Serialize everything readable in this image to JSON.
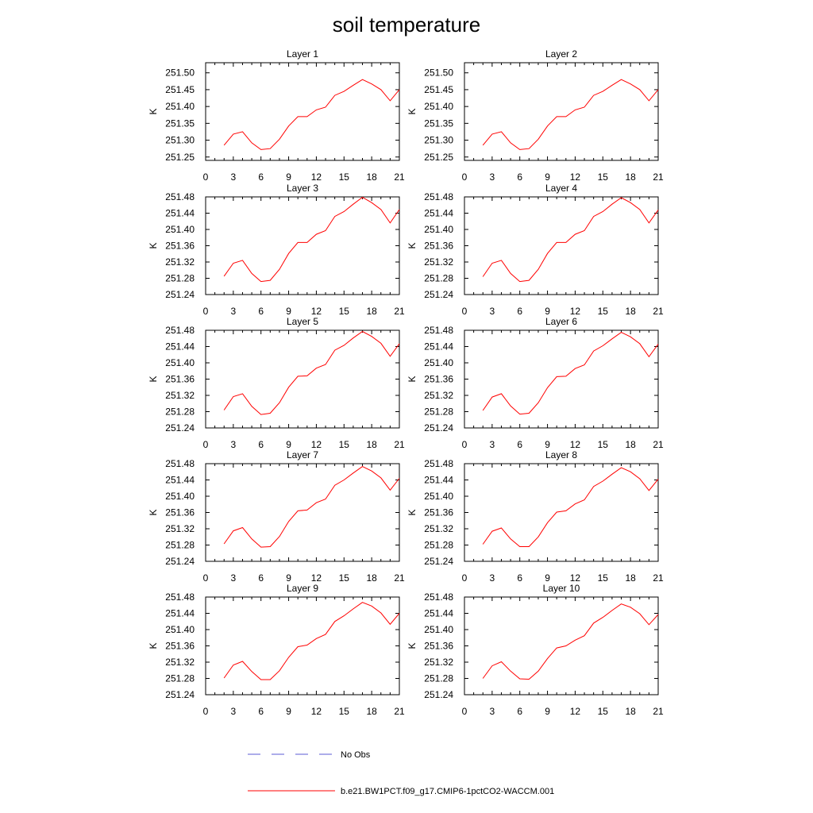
{
  "figure_title": "soil temperature",
  "legend": [
    {
      "label": "No Obs",
      "color": "#5b5bd6",
      "style": "dashed"
    },
    {
      "label": "b.e21.BW1PCT.f09_g17.CMIP6-1pctCO2-WACCM.001",
      "color": "#ff0000",
      "style": "solid"
    }
  ],
  "chart_data": [
    {
      "type": "line",
      "title": "Layer 1",
      "ylabel": "K",
      "xlim": [
        0,
        21
      ],
      "xticks": [
        0,
        3,
        6,
        9,
        12,
        15,
        18,
        21
      ],
      "ylim": [
        251.24,
        251.53
      ],
      "yticks": [
        251.25,
        251.3,
        251.35,
        251.4,
        251.45,
        251.5
      ],
      "ytick_labels": [
        "251.25",
        "251.30",
        "251.35",
        "251.40",
        "251.45",
        "251.50"
      ],
      "series": [
        {
          "color": "#ff0000",
          "x": [
            2,
            3,
            4,
            5,
            6,
            7,
            8,
            9,
            10,
            11,
            12,
            13,
            14,
            15,
            16,
            17,
            18,
            19,
            20,
            21
          ],
          "y": [
            251.285,
            251.318,
            251.325,
            251.292,
            251.272,
            251.275,
            251.303,
            251.342,
            251.37,
            251.37,
            251.39,
            251.398,
            251.433,
            251.445,
            251.463,
            251.48,
            251.467,
            251.45,
            251.417,
            251.45
          ]
        }
      ]
    },
    {
      "type": "line",
      "title": "Layer 2",
      "ylabel": "K",
      "xlim": [
        0,
        21
      ],
      "xticks": [
        0,
        3,
        6,
        9,
        12,
        15,
        18,
        21
      ],
      "ylim": [
        251.24,
        251.53
      ],
      "yticks": [
        251.25,
        251.3,
        251.35,
        251.4,
        251.45,
        251.5
      ],
      "ytick_labels": [
        "251.25",
        "251.30",
        "251.35",
        "251.40",
        "251.45",
        "251.50"
      ],
      "series": [
        {
          "color": "#ff0000",
          "x": [
            2,
            3,
            4,
            5,
            6,
            7,
            8,
            9,
            10,
            11,
            12,
            13,
            14,
            15,
            16,
            17,
            18,
            19,
            20,
            21
          ],
          "y": [
            251.285,
            251.318,
            251.325,
            251.292,
            251.272,
            251.275,
            251.303,
            251.342,
            251.37,
            251.37,
            251.39,
            251.398,
            251.433,
            251.445,
            251.463,
            251.48,
            251.467,
            251.45,
            251.417,
            251.45
          ]
        }
      ]
    },
    {
      "type": "line",
      "title": "Layer 3",
      "ylabel": "K",
      "xlim": [
        0,
        21
      ],
      "xticks": [
        0,
        3,
        6,
        9,
        12,
        15,
        18,
        21
      ],
      "ylim": [
        251.24,
        251.48
      ],
      "yticks": [
        251.24,
        251.28,
        251.32,
        251.36,
        251.4,
        251.44,
        251.48
      ],
      "ytick_labels": [
        "251.24",
        "251.28",
        "251.32",
        "251.36",
        "251.40",
        "251.44",
        "251.48"
      ],
      "series": [
        {
          "color": "#ff0000",
          "x": [
            2,
            3,
            4,
            5,
            6,
            7,
            8,
            9,
            10,
            11,
            12,
            13,
            14,
            15,
            16,
            17,
            18,
            19,
            20,
            21
          ],
          "y": [
            251.285,
            251.317,
            251.324,
            251.292,
            251.272,
            251.275,
            251.302,
            251.341,
            251.368,
            251.368,
            251.388,
            251.397,
            251.432,
            251.444,
            251.462,
            251.479,
            251.466,
            251.449,
            251.416,
            251.449
          ]
        }
      ]
    },
    {
      "type": "line",
      "title": "Layer 4",
      "ylabel": "K",
      "xlim": [
        0,
        21
      ],
      "xticks": [
        0,
        3,
        6,
        9,
        12,
        15,
        18,
        21
      ],
      "ylim": [
        251.24,
        251.48
      ],
      "yticks": [
        251.24,
        251.28,
        251.32,
        251.36,
        251.4,
        251.44,
        251.48
      ],
      "ytick_labels": [
        "251.24",
        "251.28",
        "251.32",
        "251.36",
        "251.40",
        "251.44",
        "251.48"
      ],
      "series": [
        {
          "color": "#ff0000",
          "x": [
            2,
            3,
            4,
            5,
            6,
            7,
            8,
            9,
            10,
            11,
            12,
            13,
            14,
            15,
            16,
            17,
            18,
            19,
            20,
            21
          ],
          "y": [
            251.284,
            251.317,
            251.324,
            251.292,
            251.272,
            251.275,
            251.302,
            251.341,
            251.368,
            251.368,
            251.388,
            251.397,
            251.432,
            251.444,
            251.462,
            251.478,
            251.466,
            251.449,
            251.416,
            251.448
          ]
        }
      ]
    },
    {
      "type": "line",
      "title": "Layer 5",
      "ylabel": "K",
      "xlim": [
        0,
        21
      ],
      "xticks": [
        0,
        3,
        6,
        9,
        12,
        15,
        18,
        21
      ],
      "ylim": [
        251.24,
        251.48
      ],
      "yticks": [
        251.24,
        251.28,
        251.32,
        251.36,
        251.4,
        251.44,
        251.48
      ],
      "ytick_labels": [
        "251.24",
        "251.28",
        "251.32",
        "251.36",
        "251.40",
        "251.44",
        "251.48"
      ],
      "series": [
        {
          "color": "#ff0000",
          "x": [
            2,
            3,
            4,
            5,
            6,
            7,
            8,
            9,
            10,
            11,
            12,
            13,
            14,
            15,
            16,
            17,
            18,
            19,
            20,
            21
          ],
          "y": [
            251.284,
            251.317,
            251.324,
            251.293,
            251.273,
            251.276,
            251.302,
            251.34,
            251.367,
            251.368,
            251.387,
            251.396,
            251.431,
            251.443,
            251.461,
            251.477,
            251.465,
            251.448,
            251.416,
            251.447
          ]
        }
      ]
    },
    {
      "type": "line",
      "title": "Layer 6",
      "ylabel": "K",
      "xlim": [
        0,
        21
      ],
      "xticks": [
        0,
        3,
        6,
        9,
        12,
        15,
        18,
        21
      ],
      "ylim": [
        251.24,
        251.48
      ],
      "yticks": [
        251.24,
        251.28,
        251.32,
        251.36,
        251.4,
        251.44,
        251.48
      ],
      "ytick_labels": [
        "251.24",
        "251.28",
        "251.32",
        "251.36",
        "251.40",
        "251.44",
        "251.48"
      ],
      "series": [
        {
          "color": "#ff0000",
          "x": [
            2,
            3,
            4,
            5,
            6,
            7,
            8,
            9,
            10,
            11,
            12,
            13,
            14,
            15,
            16,
            17,
            18,
            19,
            20,
            21
          ],
          "y": [
            251.283,
            251.316,
            251.324,
            251.294,
            251.274,
            251.276,
            251.302,
            251.339,
            251.366,
            251.367,
            251.386,
            251.395,
            251.429,
            251.442,
            251.459,
            251.475,
            251.464,
            251.447,
            251.415,
            251.446
          ]
        }
      ]
    },
    {
      "type": "line",
      "title": "Layer 7",
      "ylabel": "K",
      "xlim": [
        0,
        21
      ],
      "xticks": [
        0,
        3,
        6,
        9,
        12,
        15,
        18,
        21
      ],
      "ylim": [
        251.24,
        251.48
      ],
      "yticks": [
        251.24,
        251.28,
        251.32,
        251.36,
        251.4,
        251.44,
        251.48
      ],
      "ytick_labels": [
        "251.24",
        "251.28",
        "251.32",
        "251.36",
        "251.40",
        "251.44",
        "251.48"
      ],
      "series": [
        {
          "color": "#ff0000",
          "x": [
            2,
            3,
            4,
            5,
            6,
            7,
            8,
            9,
            10,
            11,
            12,
            13,
            14,
            15,
            16,
            17,
            18,
            19,
            20,
            21
          ],
          "y": [
            251.283,
            251.315,
            251.323,
            251.295,
            251.275,
            251.276,
            251.301,
            251.338,
            251.364,
            251.366,
            251.384,
            251.393,
            251.427,
            251.44,
            251.457,
            251.473,
            251.462,
            251.445,
            251.415,
            251.444
          ]
        }
      ]
    },
    {
      "type": "line",
      "title": "Layer 8",
      "ylabel": "K",
      "xlim": [
        0,
        21
      ],
      "xticks": [
        0,
        3,
        6,
        9,
        12,
        15,
        18,
        21
      ],
      "ylim": [
        251.24,
        251.48
      ],
      "yticks": [
        251.24,
        251.28,
        251.32,
        251.36,
        251.4,
        251.44,
        251.48
      ],
      "ytick_labels": [
        "251.24",
        "251.28",
        "251.32",
        "251.36",
        "251.40",
        "251.44",
        "251.48"
      ],
      "series": [
        {
          "color": "#ff0000",
          "x": [
            2,
            3,
            4,
            5,
            6,
            7,
            8,
            9,
            10,
            11,
            12,
            13,
            14,
            15,
            16,
            17,
            18,
            19,
            20,
            21
          ],
          "y": [
            251.282,
            251.314,
            251.322,
            251.295,
            251.276,
            251.276,
            251.3,
            251.335,
            251.361,
            251.364,
            251.381,
            251.391,
            251.424,
            251.437,
            251.454,
            251.47,
            251.46,
            251.443,
            251.414,
            251.442
          ]
        }
      ]
    },
    {
      "type": "line",
      "title": "Layer 9",
      "ylabel": "K",
      "xlim": [
        0,
        21
      ],
      "xticks": [
        0,
        3,
        6,
        9,
        12,
        15,
        18,
        21
      ],
      "ylim": [
        251.24,
        251.48
      ],
      "yticks": [
        251.24,
        251.28,
        251.32,
        251.36,
        251.4,
        251.44,
        251.48
      ],
      "ytick_labels": [
        "251.24",
        "251.28",
        "251.32",
        "251.36",
        "251.40",
        "251.44",
        "251.48"
      ],
      "series": [
        {
          "color": "#ff0000",
          "x": [
            2,
            3,
            4,
            5,
            6,
            7,
            8,
            9,
            10,
            11,
            12,
            13,
            14,
            15,
            16,
            17,
            18,
            19,
            20,
            21
          ],
          "y": [
            251.281,
            251.313,
            251.322,
            251.297,
            251.277,
            251.277,
            251.299,
            251.332,
            251.358,
            251.362,
            251.378,
            251.388,
            251.42,
            251.434,
            251.451,
            251.467,
            251.458,
            251.441,
            251.413,
            251.44
          ]
        }
      ]
    },
    {
      "type": "line",
      "title": "Layer 10",
      "ylabel": "K",
      "xlim": [
        0,
        21
      ],
      "xticks": [
        0,
        3,
        6,
        9,
        12,
        15,
        18,
        21
      ],
      "ylim": [
        251.24,
        251.48
      ],
      "yticks": [
        251.24,
        251.28,
        251.32,
        251.36,
        251.4,
        251.44,
        251.48
      ],
      "ytick_labels": [
        "251.24",
        "251.28",
        "251.32",
        "251.36",
        "251.40",
        "251.44",
        "251.48"
      ],
      "series": [
        {
          "color": "#ff0000",
          "x": [
            2,
            3,
            4,
            5,
            6,
            7,
            8,
            9,
            10,
            11,
            12,
            13,
            14,
            15,
            16,
            17,
            18,
            19,
            20,
            21
          ],
          "y": [
            251.28,
            251.311,
            251.321,
            251.298,
            251.279,
            251.278,
            251.298,
            251.329,
            251.355,
            251.36,
            251.374,
            251.385,
            251.416,
            251.43,
            251.447,
            251.463,
            251.455,
            251.439,
            251.412,
            251.437
          ]
        }
      ]
    }
  ]
}
